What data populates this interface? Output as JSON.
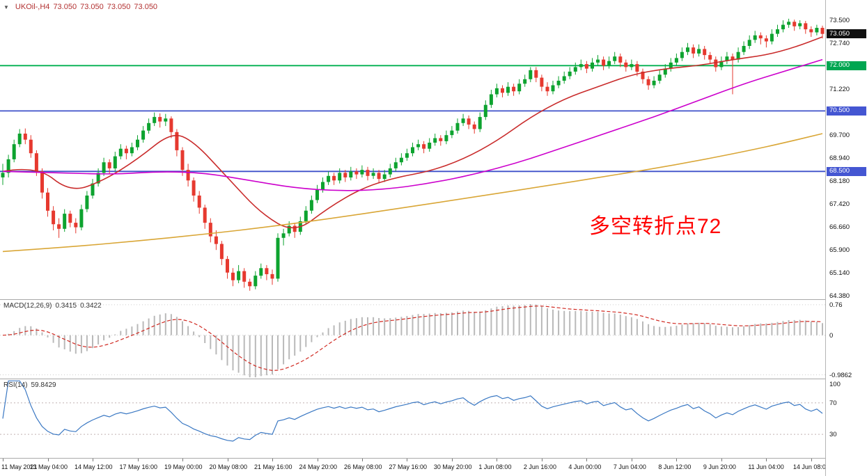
{
  "header": {
    "symbol_period": "UKOil-,H4",
    "open": "73.050",
    "high": "73.050",
    "low": "73.050",
    "close": "73.050"
  },
  "annotation": {
    "text": "多空转折点72"
  },
  "colors": {
    "up": "#0da32f",
    "down": "#e6392f",
    "ma_fast": "#c92b2b",
    "ma_mid": "#cc00cc",
    "ma_slow": "#d9a636",
    "hline_green": "#00b050",
    "hline_blue": "#3f51c9",
    "macd_hist": "#b9b9b9",
    "macd_signal": "#d02820",
    "rsi_line": "#3a78c3",
    "rsi_level": "#c0b0b0",
    "annotation": "#ff0000",
    "title_text": "#b23030",
    "tag_current_bg": "#101010",
    "tag_green_bg": "#00a651",
    "tag_blue_bg": "#4456d2"
  },
  "price_axis": {
    "labels": [
      "73.500",
      "72.740",
      "71.220",
      "69.700",
      "68.940",
      "68.180",
      "67.420",
      "66.660",
      "65.900",
      "65.140",
      "64.380"
    ],
    "tags": [
      {
        "text": "73.050",
        "price": 73.05,
        "type": "current"
      },
      {
        "text": "72.000",
        "price": 72.0,
        "type": "green"
      },
      {
        "text": "70.500",
        "price": 70.5,
        "type": "blue"
      },
      {
        "text": "68.500",
        "price": 68.5,
        "type": "blue"
      }
    ]
  },
  "chart_data": {
    "type": "candlestick",
    "symbol": "UKOil-",
    "timeframe": "H4",
    "title": "UKOil-,H4 73.050 73.050 73.050 73.050",
    "y_range": [
      64.27,
      74.17
    ],
    "x_label_every": 8,
    "x_labels": [
      "11 May 2021",
      "13 May 04:00",
      "14 May 12:00",
      "17 May 16:00",
      "19 May 00:00",
      "20 May 08:00",
      "21 May 16:00",
      "24 May 20:00",
      "26 May 08:00",
      "27 May 16:00",
      "30 May 20:00",
      "1 Jun 08:00",
      "2 Jun 16:00",
      "4 Jun 00:00",
      "7 Jun 04:00",
      "8 Jun 12:00",
      "9 Jun 20:00",
      "11 Jun 04:00",
      "14 Jun 08:00"
    ],
    "horizontal_lines": [
      {
        "price": 72.0,
        "color_key": "hline_green"
      },
      {
        "price": 70.5,
        "color_key": "hline_blue"
      },
      {
        "price": 68.5,
        "color_key": "hline_blue"
      }
    ],
    "ohlc": [
      [
        68.3,
        68.75,
        68.05,
        68.45
      ],
      [
        68.45,
        69.05,
        68.3,
        68.9
      ],
      [
        68.9,
        69.55,
        68.8,
        69.4
      ],
      [
        69.4,
        69.9,
        69.3,
        69.75
      ],
      [
        69.75,
        69.92,
        69.4,
        69.55
      ],
      [
        69.55,
        69.7,
        68.95,
        69.1
      ],
      [
        69.1,
        69.2,
        68.35,
        68.5
      ],
      [
        68.5,
        68.6,
        67.6,
        67.8
      ],
      [
        67.8,
        67.95,
        67.0,
        67.2
      ],
      [
        67.2,
        67.35,
        66.55,
        66.75
      ],
      [
        66.75,
        66.95,
        66.3,
        66.6
      ],
      [
        66.6,
        67.25,
        66.5,
        67.1
      ],
      [
        67.1,
        67.2,
        66.65,
        66.8
      ],
      [
        66.8,
        66.95,
        66.45,
        66.65
      ],
      [
        66.65,
        67.4,
        66.55,
        67.25
      ],
      [
        67.25,
        67.85,
        67.15,
        67.7
      ],
      [
        67.7,
        68.25,
        67.6,
        68.1
      ],
      [
        68.1,
        68.6,
        68.0,
        68.45
      ],
      [
        68.45,
        68.95,
        68.35,
        68.8
      ],
      [
        68.8,
        68.9,
        68.4,
        68.6
      ],
      [
        68.6,
        69.15,
        68.5,
        69.0
      ],
      [
        69.0,
        69.4,
        68.9,
        69.25
      ],
      [
        69.25,
        69.35,
        68.9,
        69.1
      ],
      [
        69.1,
        69.45,
        69.0,
        69.3
      ],
      [
        69.3,
        69.7,
        69.2,
        69.55
      ],
      [
        69.55,
        70.0,
        69.45,
        69.85
      ],
      [
        69.85,
        70.25,
        69.75,
        70.1
      ],
      [
        70.1,
        70.45,
        70.0,
        70.3
      ],
      [
        70.3,
        70.42,
        69.95,
        70.15
      ],
      [
        70.15,
        70.4,
        70.0,
        70.25
      ],
      [
        70.25,
        70.32,
        69.6,
        69.8
      ],
      [
        69.8,
        69.9,
        69.0,
        69.2
      ],
      [
        69.2,
        69.3,
        68.35,
        68.55
      ],
      [
        68.55,
        68.75,
        68.0,
        68.2
      ],
      [
        68.2,
        68.3,
        67.5,
        67.7
      ],
      [
        67.7,
        67.85,
        67.1,
        67.3
      ],
      [
        67.3,
        67.4,
        66.6,
        66.8
      ],
      [
        66.8,
        66.95,
        66.15,
        66.35
      ],
      [
        66.35,
        66.55,
        65.9,
        66.1
      ],
      [
        66.1,
        66.2,
        65.4,
        65.6
      ],
      [
        65.6,
        65.7,
        64.95,
        65.15
      ],
      [
        65.15,
        65.3,
        64.7,
        64.9
      ],
      [
        64.9,
        65.4,
        64.8,
        65.2
      ],
      [
        65.2,
        65.3,
        64.65,
        64.85
      ],
      [
        64.85,
        64.95,
        64.55,
        64.7
      ],
      [
        64.7,
        65.2,
        64.6,
        65.05
      ],
      [
        65.05,
        65.45,
        64.95,
        65.3
      ],
      [
        65.3,
        65.4,
        64.9,
        65.1
      ],
      [
        65.1,
        65.25,
        64.75,
        64.95
      ],
      [
        64.95,
        66.45,
        64.85,
        66.3
      ],
      [
        66.3,
        66.6,
        66.05,
        66.45
      ],
      [
        66.45,
        66.85,
        66.35,
        66.7
      ],
      [
        66.7,
        66.8,
        66.3,
        66.5
      ],
      [
        66.5,
        67.0,
        66.4,
        66.85
      ],
      [
        66.85,
        67.35,
        66.75,
        67.2
      ],
      [
        67.2,
        67.7,
        67.1,
        67.55
      ],
      [
        67.55,
        68.05,
        67.45,
        67.9
      ],
      [
        67.9,
        68.3,
        67.8,
        68.15
      ],
      [
        68.15,
        68.5,
        68.05,
        68.35
      ],
      [
        68.35,
        68.45,
        68.05,
        68.2
      ],
      [
        68.2,
        68.6,
        68.1,
        68.45
      ],
      [
        68.45,
        68.55,
        68.15,
        68.3
      ],
      [
        68.3,
        68.65,
        68.2,
        68.5
      ],
      [
        68.5,
        68.6,
        68.25,
        68.4
      ],
      [
        68.4,
        68.7,
        68.3,
        68.55
      ],
      [
        68.55,
        68.65,
        68.2,
        68.35
      ],
      [
        68.35,
        68.6,
        68.25,
        68.45
      ],
      [
        68.45,
        68.55,
        68.1,
        68.25
      ],
      [
        68.25,
        68.55,
        68.15,
        68.4
      ],
      [
        68.4,
        68.75,
        68.3,
        68.6
      ],
      [
        68.6,
        68.95,
        68.5,
        68.8
      ],
      [
        68.8,
        69.1,
        68.7,
        68.95
      ],
      [
        68.95,
        69.25,
        68.85,
        69.1
      ],
      [
        69.1,
        69.45,
        69.0,
        69.3
      ],
      [
        69.3,
        69.55,
        69.2,
        69.4
      ],
      [
        69.4,
        69.5,
        69.1,
        69.25
      ],
      [
        69.25,
        69.6,
        69.15,
        69.45
      ],
      [
        69.45,
        69.75,
        69.35,
        69.6
      ],
      [
        69.6,
        69.7,
        69.35,
        69.5
      ],
      [
        69.5,
        69.85,
        69.4,
        69.7
      ],
      [
        69.7,
        70.0,
        69.6,
        69.85
      ],
      [
        69.85,
        70.25,
        69.75,
        70.1
      ],
      [
        70.1,
        70.4,
        70.0,
        70.25
      ],
      [
        70.25,
        70.35,
        69.9,
        70.05
      ],
      [
        70.05,
        70.15,
        69.75,
        69.9
      ],
      [
        69.9,
        70.45,
        69.8,
        70.3
      ],
      [
        70.3,
        70.85,
        70.2,
        70.7
      ],
      [
        70.7,
        71.2,
        70.6,
        71.05
      ],
      [
        71.05,
        71.4,
        70.95,
        71.25
      ],
      [
        71.25,
        71.35,
        70.95,
        71.1
      ],
      [
        71.1,
        71.45,
        71.0,
        71.3
      ],
      [
        71.3,
        71.4,
        71.0,
        71.15
      ],
      [
        71.15,
        71.55,
        71.05,
        71.4
      ],
      [
        71.4,
        71.7,
        71.3,
        71.55
      ],
      [
        71.55,
        71.95,
        71.45,
        71.85
      ],
      [
        71.85,
        71.95,
        71.45,
        71.6
      ],
      [
        71.6,
        71.7,
        71.15,
        71.3
      ],
      [
        71.3,
        71.45,
        71.0,
        71.15
      ],
      [
        71.15,
        71.5,
        71.05,
        71.35
      ],
      [
        71.35,
        71.65,
        71.25,
        71.5
      ],
      [
        71.5,
        71.8,
        71.4,
        71.65
      ],
      [
        71.65,
        71.95,
        71.55,
        71.8
      ],
      [
        71.8,
        72.1,
        71.7,
        71.95
      ],
      [
        71.95,
        72.2,
        71.85,
        72.05
      ],
      [
        72.05,
        72.15,
        71.75,
        71.9
      ],
      [
        71.9,
        72.25,
        71.8,
        72.1
      ],
      [
        72.1,
        72.35,
        72.0,
        72.2
      ],
      [
        72.2,
        72.3,
        71.85,
        72.0
      ],
      [
        72.0,
        72.3,
        71.9,
        72.15
      ],
      [
        72.15,
        72.45,
        72.05,
        72.3
      ],
      [
        72.3,
        72.4,
        71.95,
        72.1
      ],
      [
        72.1,
        72.2,
        71.8,
        71.95
      ],
      [
        71.95,
        72.2,
        71.85,
        72.05
      ],
      [
        72.05,
        72.15,
        71.65,
        71.8
      ],
      [
        71.8,
        71.9,
        71.4,
        71.55
      ],
      [
        71.55,
        71.65,
        71.2,
        71.35
      ],
      [
        71.35,
        71.65,
        71.25,
        71.5
      ],
      [
        71.5,
        71.85,
        71.4,
        71.7
      ],
      [
        71.7,
        72.05,
        71.6,
        71.9
      ],
      [
        71.9,
        72.25,
        71.8,
        72.1
      ],
      [
        72.1,
        72.4,
        72.0,
        72.25
      ],
      [
        72.25,
        72.6,
        72.15,
        72.45
      ],
      [
        72.45,
        72.75,
        72.35,
        72.6
      ],
      [
        72.6,
        72.7,
        72.25,
        72.4
      ],
      [
        72.4,
        72.7,
        72.3,
        72.55
      ],
      [
        72.55,
        72.65,
        72.2,
        72.35
      ],
      [
        72.35,
        72.45,
        72.05,
        72.2
      ],
      [
        72.2,
        72.3,
        71.8,
        71.95
      ],
      [
        71.95,
        72.3,
        71.85,
        72.15
      ],
      [
        72.15,
        72.45,
        72.05,
        72.3
      ],
      [
        72.3,
        72.4,
        71.05,
        72.2
      ],
      [
        72.2,
        72.6,
        72.1,
        72.45
      ],
      [
        72.45,
        72.8,
        72.35,
        72.65
      ],
      [
        72.65,
        73.0,
        72.55,
        72.85
      ],
      [
        72.85,
        73.15,
        72.75,
        73.0
      ],
      [
        73.0,
        73.1,
        72.7,
        72.9
      ],
      [
        72.9,
        73.0,
        72.6,
        72.8
      ],
      [
        72.8,
        73.2,
        72.7,
        73.05
      ],
      [
        73.05,
        73.35,
        72.95,
        73.2
      ],
      [
        73.2,
        73.5,
        73.1,
        73.35
      ],
      [
        73.35,
        73.55,
        73.25,
        73.45
      ],
      [
        73.45,
        73.52,
        73.15,
        73.3
      ],
      [
        73.3,
        73.5,
        73.2,
        73.4
      ],
      [
        73.4,
        73.48,
        73.05,
        73.2
      ],
      [
        73.2,
        73.3,
        72.95,
        73.1
      ],
      [
        73.1,
        73.35,
        73.0,
        73.25
      ],
      [
        73.25,
        73.32,
        72.9,
        73.05
      ]
    ],
    "overlays": [
      {
        "name": "ma-fast-line",
        "color_key": "ma_fast",
        "points": [
          [
            0,
            68.5
          ],
          [
            6,
            68.7
          ],
          [
            12,
            67.8
          ],
          [
            18,
            68.2
          ],
          [
            24,
            68.9
          ],
          [
            30,
            69.8
          ],
          [
            34,
            69.5
          ],
          [
            40,
            68.3
          ],
          [
            46,
            67.1
          ],
          [
            52,
            66.45
          ],
          [
            58,
            67.3
          ],
          [
            64,
            67.95
          ],
          [
            70,
            68.3
          ],
          [
            76,
            68.5
          ],
          [
            82,
            68.9
          ],
          [
            88,
            69.5
          ],
          [
            94,
            70.3
          ],
          [
            100,
            70.9
          ],
          [
            106,
            71.3
          ],
          [
            112,
            71.7
          ],
          [
            118,
            71.9
          ],
          [
            124,
            72.0
          ],
          [
            130,
            72.2
          ],
          [
            136,
            72.35
          ],
          [
            141,
            72.6
          ],
          [
            146,
            72.95
          ]
        ]
      },
      {
        "name": "ma-mid-line",
        "color_key": "ma_mid",
        "points": [
          [
            0,
            68.5
          ],
          [
            10,
            68.45
          ],
          [
            20,
            68.4
          ],
          [
            28,
            68.5
          ],
          [
            36,
            68.45
          ],
          [
            44,
            68.2
          ],
          [
            52,
            67.95
          ],
          [
            60,
            67.85
          ],
          [
            68,
            67.9
          ],
          [
            76,
            68.1
          ],
          [
            84,
            68.4
          ],
          [
            92,
            68.8
          ],
          [
            100,
            69.3
          ],
          [
            108,
            69.8
          ],
          [
            116,
            70.3
          ],
          [
            124,
            70.85
          ],
          [
            132,
            71.4
          ],
          [
            139,
            71.8
          ],
          [
            146,
            72.2
          ]
        ]
      },
      {
        "name": "ma-slow-line",
        "color_key": "ma_slow",
        "points": [
          [
            0,
            65.85
          ],
          [
            12,
            66.0
          ],
          [
            24,
            66.2
          ],
          [
            36,
            66.42
          ],
          [
            48,
            66.68
          ],
          [
            60,
            66.98
          ],
          [
            72,
            67.32
          ],
          [
            84,
            67.65
          ],
          [
            96,
            68.0
          ],
          [
            108,
            68.35
          ],
          [
            120,
            68.72
          ],
          [
            132,
            69.15
          ],
          [
            140,
            69.48
          ],
          [
            146,
            69.75
          ]
        ]
      }
    ],
    "indicators": {
      "macd": {
        "name": "MACD(12,26,9)",
        "value_main": "0.3415",
        "value_signal": "0.3422",
        "params": [
          12,
          26,
          9
        ],
        "range": [
          -1.08,
          0.88
        ],
        "axis": [
          {
            "text": "0.76",
            "v": 0.76
          },
          {
            "text": "0",
            "v": 0
          },
          {
            "text": "-0.9862",
            "v": -0.9862
          }
        ]
      },
      "rsi": {
        "name": "RSI(14)",
        "value": "59.8429",
        "period": 14,
        "range": [
          0,
          100
        ],
        "levels": [
          70,
          30
        ],
        "axis": [
          {
            "text": "100",
            "v": 100
          },
          {
            "text": "70",
            "v": 70
          },
          {
            "text": "30",
            "v": 30
          }
        ]
      }
    }
  }
}
